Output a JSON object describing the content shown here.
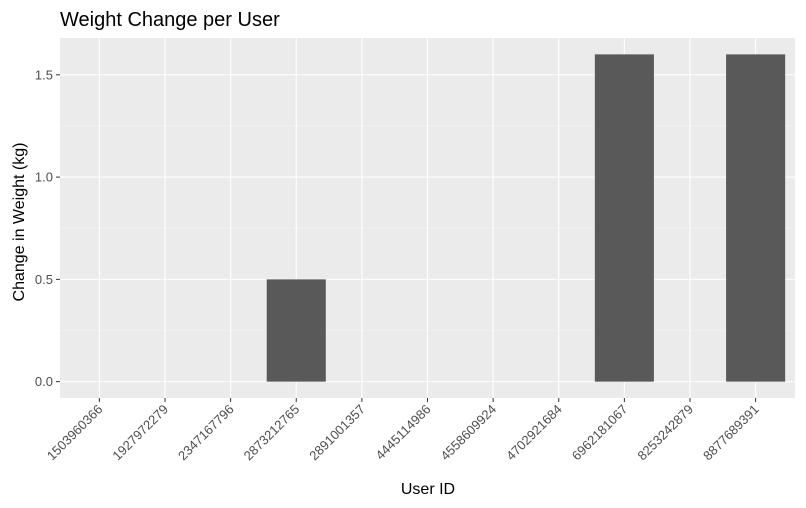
{
  "chart_data": {
    "type": "bar",
    "title": "Weight Change per User",
    "xlabel": "User ID",
    "ylabel": "Change in Weight (kg)",
    "categories": [
      "1503960366",
      "1927972279",
      "2347167796",
      "2873212765",
      "2891001357",
      "4445114986",
      "4558609924",
      "4702921684",
      "6962181067",
      "8253242879",
      "8877689391"
    ],
    "values": [
      0,
      0,
      0,
      0.5,
      0,
      0,
      0,
      0,
      1.6,
      0,
      1.6
    ],
    "yticks": [
      "0.0",
      "0.5",
      "1.0",
      "1.5"
    ],
    "ylim": [
      -0.08,
      1.68
    ],
    "grid": true,
    "legend": "none"
  },
  "colors": {
    "panel_background": "#ebebeb",
    "grid_major": "#ffffff",
    "grid_minor": "#f5f5f5",
    "bar_fill": "#595959",
    "tick_mark": "#333333",
    "tick_text": "#4d4d4d"
  }
}
